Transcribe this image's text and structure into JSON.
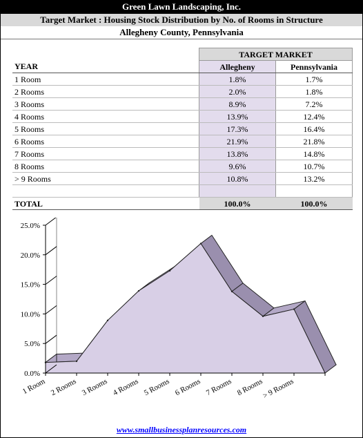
{
  "header": {
    "company": "Green Lawn Landscaping, Inc.",
    "title": "Target Market : Housing Stock Distribution by No. of Rooms in Structure",
    "location": "Allegheny County,  Pennsylvania"
  },
  "table": {
    "group_header": "TARGET MARKET",
    "columns": [
      "YEAR",
      "Allegheny",
      "Pennsylvania"
    ],
    "rows": [
      [
        "1 Room",
        "1.8%",
        "1.7%"
      ],
      [
        "2 Rooms",
        "2.0%",
        "1.8%"
      ],
      [
        "3 Rooms",
        "8.9%",
        "7.2%"
      ],
      [
        "4 Rooms",
        "13.9%",
        "12.4%"
      ],
      [
        "5 Rooms",
        "17.3%",
        "16.4%"
      ],
      [
        "6 Rooms",
        "21.9%",
        "21.8%"
      ],
      [
        "7 Rooms",
        "13.8%",
        "14.8%"
      ],
      [
        "8 Rooms",
        "9.6%",
        "10.7%"
      ],
      [
        "> 9 Rooms",
        "10.8%",
        "13.2%"
      ]
    ],
    "total": [
      "TOTAL",
      "100.0%",
      "100.0%"
    ]
  },
  "chart_data": {
    "type": "area",
    "categories": [
      "1 Room",
      "2 Rooms",
      "3 Rooms",
      "4 Rooms",
      "5 Rooms",
      "6 Rooms",
      "7 Rooms",
      "8 Rooms",
      "> 9 Rooms"
    ],
    "series": [
      {
        "values": [
          1.8,
          2.0,
          8.9,
          13.9,
          17.3,
          21.9,
          13.8,
          9.6,
          10.8
        ]
      }
    ],
    "ylim": [
      0,
      25
    ],
    "yticks": [
      "0.0%",
      "5.0%",
      "10.0%",
      "15.0%",
      "20.0%",
      "25.0%"
    ],
    "grid": false,
    "colors": {
      "fill": "#d8cfe6",
      "side": "#b3a8c6",
      "top": "#9a8fae",
      "edge": "#222222"
    }
  },
  "footer": {
    "link": "www.smallbusinessplanresources.com"
  }
}
